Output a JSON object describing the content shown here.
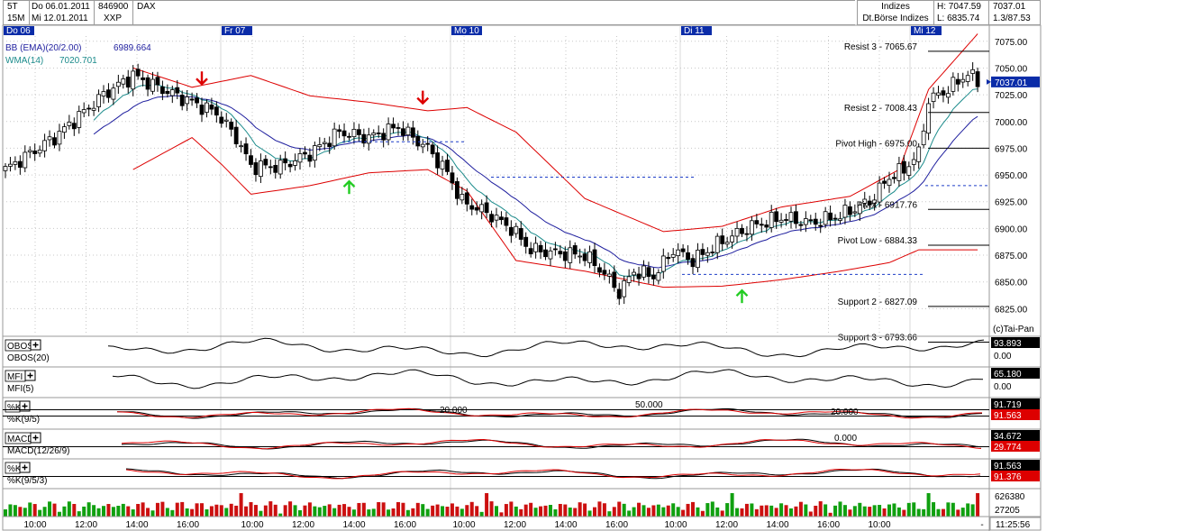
{
  "header": {
    "timeframe_top": "5T",
    "timeframe_bottom": "15M",
    "date_from": "Do 06.01.2011",
    "date_to": "Mi 12.01.2011",
    "symbol_id": "846900",
    "symbol_name": "DAX",
    "exchange_code": "XXP",
    "category": "Indizes",
    "exchange": "Dt.Börse Indizes",
    "high": "H: 7047.59",
    "low": "L: 6835.74",
    "last_price": "7037.01",
    "change": "1.3/87.53"
  },
  "day_labels": [
    "Do 06",
    "Fr 07",
    "Mo 10",
    "Di 11",
    "Mi 12"
  ],
  "legend": {
    "bb": "BB (EMA)(20/2.00)",
    "bb_value": "6989.664",
    "wma": "WMA(14)",
    "wma_value": "7020.701"
  },
  "levels": [
    {
      "label": "Resist 3 - 7065.67",
      "value": 7065.67
    },
    {
      "label": "Resist 2 - 7008.43",
      "value": 7008.43
    },
    {
      "label": "Pivot High - 6975.00",
      "value": 6975.0
    },
    {
      "label": "Pivot - 6917.76",
      "value": 6917.76
    },
    {
      "label": "Pivot Low - 6884.33",
      "value": 6884.33
    },
    {
      "label": "Support 2 - 6827.09",
      "value": 6827.09
    },
    {
      "label": "Support 3 - 6793.66",
      "value": 6793.66
    }
  ],
  "copyright": "(c)Tai-Pan",
  "subpanels": [
    {
      "name": "OBOS",
      "sub": "OBOS(20)",
      "val1": "93.893",
      "val2": "0.00",
      "val2_style": "plain"
    },
    {
      "name": "MFI",
      "sub": "MFI(5)",
      "val1": "65.180",
      "val2": "0.00",
      "val2_style": "plain"
    },
    {
      "name": "%K",
      "sub": "%K(9/5)",
      "val1": "91.719",
      "val2": "91.563",
      "val2_style": "red",
      "refs": [
        "20.000",
        "50.000",
        "20.000"
      ]
    },
    {
      "name": "MACD",
      "sub": "MACD(12/26/9)",
      "val1": "34.672",
      "val2": "29.774",
      "val2_style": "red",
      "refs": [
        "0.000"
      ]
    },
    {
      "name": "%K",
      "sub": "%K(9/5/3)",
      "val1": "91.563",
      "val2": "91.376",
      "val2_style": "red"
    }
  ],
  "volume": {
    "max": "626380",
    "min": "27205"
  },
  "time_labels": [
    "10:00",
    "12:00",
    "14:00",
    "16:00",
    "10:00",
    "12:00",
    "14:00",
    "16:00",
    "10:00",
    "12:00",
    "14:00",
    "16:00",
    "10:00",
    "12:00",
    "14:00",
    "16:00",
    "10:00",
    "-"
  ],
  "clock": "11:25:56",
  "chart_data": {
    "type": "candlestick",
    "title": "DAX",
    "y_ticks": [
      7075,
      7050,
      7025,
      7000,
      6975,
      6950,
      6925,
      6900,
      6875,
      6850,
      6825
    ],
    "ylim": [
      6800,
      7090
    ],
    "series": [
      {
        "name": "BB (EMA)(20/2.00)",
        "last": 6989.664
      },
      {
        "name": "WMA(14)",
        "last": 7020.701
      }
    ],
    "anchors": [
      {
        "t": 0,
        "close": 6955
      },
      {
        "t": 10,
        "close": 6985
      },
      {
        "t": 20,
        "close": 7025
      },
      {
        "t": 26,
        "close": 7043
      },
      {
        "t": 32,
        "close": 7030
      },
      {
        "t": 38,
        "close": 7018
      },
      {
        "t": 43,
        "close": 7008
      },
      {
        "t": 47,
        "close": 6985
      },
      {
        "t": 50,
        "close": 6958
      },
      {
        "t": 56,
        "close": 6958
      },
      {
        "t": 62,
        "close": 6970
      },
      {
        "t": 68,
        "close": 6990
      },
      {
        "t": 74,
        "close": 6985
      },
      {
        "t": 80,
        "close": 6995
      },
      {
        "t": 86,
        "close": 6975
      },
      {
        "t": 90,
        "close": 6952
      },
      {
        "t": 93,
        "close": 6925
      },
      {
        "t": 98,
        "close": 6915
      },
      {
        "t": 103,
        "close": 6900
      },
      {
        "t": 107,
        "close": 6880
      },
      {
        "t": 112,
        "close": 6877
      },
      {
        "t": 118,
        "close": 6875
      },
      {
        "t": 122,
        "close": 6858
      },
      {
        "t": 125,
        "close": 6840
      },
      {
        "t": 128,
        "close": 6860
      },
      {
        "t": 132,
        "close": 6855
      },
      {
        "t": 136,
        "close": 6880
      },
      {
        "t": 140,
        "close": 6870
      },
      {
        "t": 146,
        "close": 6888
      },
      {
        "t": 152,
        "close": 6902
      },
      {
        "t": 158,
        "close": 6910
      },
      {
        "t": 164,
        "close": 6905
      },
      {
        "t": 170,
        "close": 6912
      },
      {
        "t": 176,
        "close": 6925
      },
      {
        "t": 180,
        "close": 6948
      },
      {
        "t": 183,
        "close": 6955
      },
      {
        "t": 186,
        "close": 6970
      },
      {
        "t": 188,
        "close": 7020
      },
      {
        "t": 192,
        "close": 7030
      },
      {
        "t": 196,
        "close": 7045
      },
      {
        "t": 198,
        "close": 7037
      }
    ],
    "bb_upper_anchors": [
      {
        "t": 0,
        "v": 7020
      },
      {
        "t": 26,
        "v": 7050
      },
      {
        "t": 38,
        "v": 7032
      },
      {
        "t": 50,
        "v": 7043
      },
      {
        "t": 62,
        "v": 7024
      },
      {
        "t": 74,
        "v": 7018
      },
      {
        "t": 86,
        "v": 7010
      },
      {
        "t": 94,
        "v": 7013
      },
      {
        "t": 104,
        "v": 6990
      },
      {
        "t": 118,
        "v": 6928
      },
      {
        "t": 134,
        "v": 6897
      },
      {
        "t": 146,
        "v": 6902
      },
      {
        "t": 158,
        "v": 6920
      },
      {
        "t": 172,
        "v": 6930
      },
      {
        "t": 182,
        "v": 6955
      },
      {
        "t": 188,
        "v": 7030
      },
      {
        "t": 198,
        "v": 7082
      }
    ],
    "bb_lower_anchors": [
      {
        "t": 26,
        "v": 6955
      },
      {
        "t": 38,
        "v": 6985
      },
      {
        "t": 44,
        "v": 6960
      },
      {
        "t": 50,
        "v": 6932
      },
      {
        "t": 62,
        "v": 6940
      },
      {
        "t": 74,
        "v": 6952
      },
      {
        "t": 86,
        "v": 6955
      },
      {
        "t": 94,
        "v": 6935
      },
      {
        "t": 104,
        "v": 6870
      },
      {
        "t": 118,
        "v": 6860
      },
      {
        "t": 134,
        "v": 6845
      },
      {
        "t": 146,
        "v": 6846
      },
      {
        "t": 158,
        "v": 6852
      },
      {
        "t": 170,
        "v": 6860
      },
      {
        "t": 180,
        "v": 6868
      },
      {
        "t": 186,
        "v": 6880
      },
      {
        "t": 198,
        "v": 6880
      }
    ],
    "arrows": [
      {
        "t": 40,
        "value": 7035,
        "dir": "down",
        "color": "#dd0000"
      },
      {
        "t": 85,
        "value": 7017,
        "dir": "down",
        "color": "#dd0000"
      },
      {
        "t": 70,
        "value": 6944,
        "dir": "up",
        "color": "#22cc22"
      },
      {
        "t": 150,
        "value": 6842,
        "dir": "up",
        "color": "#22cc22"
      }
    ]
  },
  "colors": {
    "grid": "#c8c8c8",
    "bb": "#dd0000",
    "wma": "#1e1e9e",
    "ema": "#1b8b8b",
    "day_label_bg": "#0b2ca8",
    "price_tag": "#0b2ca8",
    "value_box": "#000000",
    "value_box_red": "#dd0000",
    "vol_up": "#10a010",
    "vol_down": "#cc1010"
  }
}
